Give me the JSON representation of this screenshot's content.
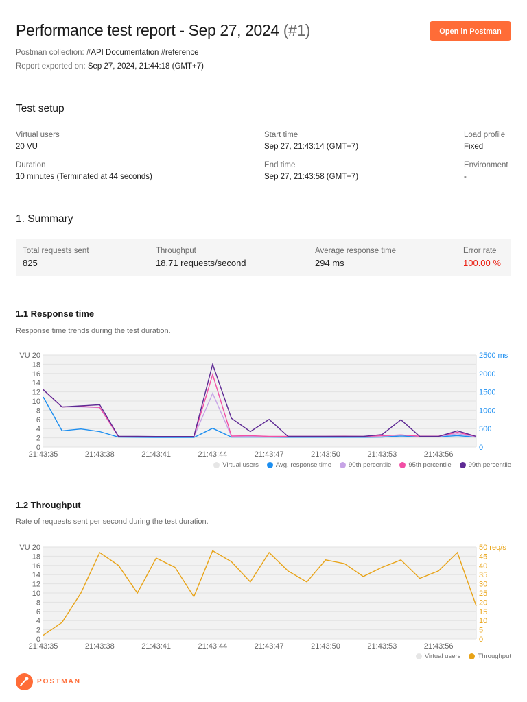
{
  "header": {
    "title": "Performance test report - Sep 27, 2024",
    "run_number": "(#1)",
    "open_button": "Open in Postman",
    "collection_label": "Postman collection:",
    "collection_value": "#API Documentation #reference",
    "exported_label": "Report exported on:",
    "exported_value": "Sep 27, 2024, 21:44:18 (GMT+7)"
  },
  "setup": {
    "heading": "Test setup",
    "virtual_users_label": "Virtual users",
    "virtual_users_value": "20 VU",
    "duration_label": "Duration",
    "duration_value": "10 minutes (Terminated at 44 seconds)",
    "start_label": "Start time",
    "start_value": "Sep 27, 21:43:14 (GMT+7)",
    "end_label": "End time",
    "end_value": "Sep 27, 21:43:58 (GMT+7)",
    "load_profile_label": "Load profile",
    "load_profile_value": "Fixed",
    "environment_label": "Environment",
    "environment_value": "-"
  },
  "summary": {
    "heading": "1. Summary",
    "total_label": "Total requests sent",
    "total_value": "825",
    "throughput_label": "Throughput",
    "throughput_value": "18.71 requests/second",
    "avg_label": "Average response time",
    "avg_value": "294 ms",
    "error_label": "Error rate",
    "error_value": "100.00 %",
    "error_color": "#eb2013"
  },
  "response_section": {
    "heading": "1.1 Response time",
    "description": "Response time trends during the test duration."
  },
  "throughput_section": {
    "heading": "1.2 Throughput",
    "description": "Rate of requests sent per second during the test duration."
  },
  "footer": {
    "brand": "POSTMAN"
  },
  "chart_data": [
    {
      "type": "line",
      "title": "1.1 Response time",
      "x": [
        "21:43:35",
        "21:43:36",
        "21:43:37",
        "21:43:38",
        "21:43:39",
        "21:43:40",
        "21:43:41",
        "21:43:42",
        "21:43:43",
        "21:43:44",
        "21:43:45",
        "21:43:46",
        "21:43:47",
        "21:43:48",
        "21:43:49",
        "21:43:50",
        "21:43:51",
        "21:43:52",
        "21:43:53",
        "21:43:54",
        "21:43:55",
        "21:43:56",
        "21:43:57",
        "21:43:58"
      ],
      "x_ticks": [
        "21:43:35",
        "21:43:38",
        "21:43:41",
        "21:43:44",
        "21:43:47",
        "21:43:50",
        "21:43:53",
        "21:43:56"
      ],
      "ylabel_left": "VU",
      "ylim_left": [
        0,
        20
      ],
      "yticks_left": [
        0,
        2,
        4,
        6,
        8,
        10,
        12,
        14,
        16,
        18,
        20
      ],
      "ylabel_right": "ms",
      "ylim_right": [
        0,
        2500
      ],
      "yticks_right": [
        "0",
        "500",
        "1000",
        "1500",
        "2000",
        "2500 ms"
      ],
      "grid": true,
      "legend_position": "bottom-right",
      "series": [
        {
          "name": "Virtual users",
          "color": "#e6e6e6",
          "axis": "left",
          "values": []
        },
        {
          "name": "Avg. response time",
          "color": "#1c8ef0",
          "axis": "right",
          "values": [
            1360,
            440,
            490,
            420,
            270,
            265,
            260,
            260,
            260,
            510,
            270,
            270,
            270,
            265,
            265,
            265,
            265,
            265,
            270,
            300,
            280,
            280,
            310,
            270
          ]
        },
        {
          "name": "90th percentile",
          "color": "#c7a4e6",
          "axis": "right",
          "values": [
            1560,
            1090,
            1090,
            1070,
            280,
            280,
            275,
            275,
            275,
            1460,
            290,
            300,
            285,
            285,
            285,
            285,
            290,
            285,
            300,
            330,
            290,
            290,
            360,
            280
          ]
        },
        {
          "name": "95th percentile",
          "color": "#f24fa5",
          "axis": "right",
          "values": [
            1560,
            1090,
            1100,
            1080,
            285,
            285,
            280,
            280,
            280,
            1970,
            300,
            310,
            290,
            290,
            290,
            290,
            295,
            290,
            310,
            330,
            295,
            295,
            400,
            290
          ]
        },
        {
          "name": "99th percentile",
          "color": "#5e2a94",
          "axis": "right",
          "values": [
            1560,
            1090,
            1120,
            1150,
            290,
            290,
            285,
            285,
            285,
            2250,
            780,
            420,
            750,
            290,
            290,
            290,
            290,
            290,
            340,
            740,
            290,
            290,
            440,
            290
          ]
        }
      ]
    },
    {
      "type": "line",
      "title": "1.2 Throughput",
      "x": [
        "21:43:35",
        "21:43:36",
        "21:43:37",
        "21:43:38",
        "21:43:39",
        "21:43:40",
        "21:43:41",
        "21:43:42",
        "21:43:43",
        "21:43:44",
        "21:43:45",
        "21:43:46",
        "21:43:47",
        "21:43:48",
        "21:43:49",
        "21:43:50",
        "21:43:51",
        "21:43:52",
        "21:43:53",
        "21:43:54",
        "21:43:55",
        "21:43:56",
        "21:43:57",
        "21:43:58"
      ],
      "x_ticks": [
        "21:43:35",
        "21:43:38",
        "21:43:41",
        "21:43:44",
        "21:43:47",
        "21:43:50",
        "21:43:53",
        "21:43:56"
      ],
      "ylabel_left": "VU",
      "ylim_left": [
        0,
        20
      ],
      "yticks_left": [
        0,
        2,
        4,
        6,
        8,
        10,
        12,
        14,
        16,
        18,
        20
      ],
      "ylabel_right": "req/s",
      "ylim_right": [
        0,
        50
      ],
      "yticks_right": [
        "0",
        "5",
        "10",
        "15",
        "20",
        "25",
        "30",
        "35",
        "40",
        "45",
        "50 req/s"
      ],
      "grid": true,
      "legend_position": "bottom-right",
      "series": [
        {
          "name": "Virtual users",
          "color": "#e6e6e6",
          "axis": "left",
          "values": []
        },
        {
          "name": "Throughput",
          "color": "#e8a317",
          "axis": "right",
          "values": [
            2,
            9,
            25,
            47,
            40,
            25,
            44,
            39,
            23,
            48,
            42,
            31,
            47,
            37,
            31,
            43,
            41,
            34,
            39,
            43,
            33,
            37,
            47,
            18
          ]
        }
      ]
    }
  ]
}
